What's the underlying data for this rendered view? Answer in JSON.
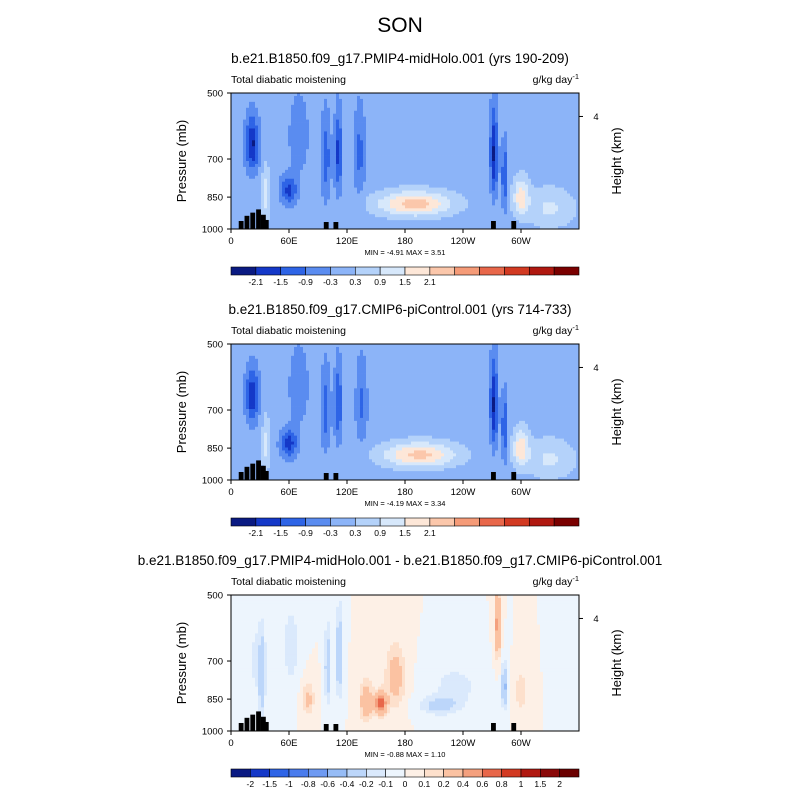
{
  "figure": {
    "season": "SON"
  },
  "chart_data": [
    {
      "type": "heatmap",
      "title": "b.e21.B1850.f09_g17.PMIP4-midHolo.001 (yrs 190-209)",
      "left_label": "Total diabatic moistening",
      "units": "g/kg day",
      "units_exp": "-1",
      "ylabel": "Pressure (mb)",
      "ylabel_right": "Height (km)",
      "yticks": [
        "500",
        "700",
        "850",
        "1000"
      ],
      "yticks_right": [
        "4"
      ],
      "xticks": [
        "0",
        "60E",
        "120E",
        "180",
        "120W",
        "60W"
      ],
      "xlim": [
        0,
        360
      ],
      "ylim": [
        1000,
        500
      ],
      "min_label": "-4.91",
      "max_label": "3.51",
      "colorbar_ticks": [
        "-2.1",
        "-1.5",
        "-0.9",
        "-0.3",
        "0.3",
        "0.9",
        "1.5",
        "2.1"
      ],
      "colorbar_colors": [
        "#0a1a82",
        "#1438c8",
        "#2e64e6",
        "#5a8cf0",
        "#8cb4f8",
        "#b4d2fa",
        "#d7e8fb",
        "#fde7d8",
        "#fbc7ab",
        "#f59b78",
        "#e8674a",
        "#d23a22",
        "#b01810",
        "#7a0000"
      ],
      "features": [
        {
          "lon": 22,
          "p": 650,
          "value": -2.2,
          "slon": 7,
          "sp": 90
        },
        {
          "lon": 36,
          "p": 840,
          "value": 1.2,
          "slon": 4,
          "sp": 120
        },
        {
          "lon": 60,
          "p": 820,
          "value": -1.7,
          "slon": 9,
          "sp": 60
        },
        {
          "lon": 70,
          "p": 620,
          "value": -0.8,
          "slon": 10,
          "sp": 120
        },
        {
          "lon": 98,
          "p": 700,
          "value": -1.3,
          "slon": 5,
          "sp": 150
        },
        {
          "lon": 111,
          "p": 680,
          "value": -1.7,
          "slon": 4,
          "sp": 140
        },
        {
          "lon": 133,
          "p": 680,
          "value": -1.1,
          "slon": 6,
          "sp": 150
        },
        {
          "lon": 190,
          "p": 880,
          "value": 2.4,
          "slon": 38,
          "sp": 55
        },
        {
          "lon": 272,
          "p": 680,
          "value": -2.2,
          "slon": 4,
          "sp": 150
        },
        {
          "lon": 283,
          "p": 770,
          "value": -1.6,
          "slon": 3,
          "sp": 130
        },
        {
          "lon": 300,
          "p": 850,
          "value": 1.8,
          "slon": 8,
          "sp": 80
        },
        {
          "lon": 330,
          "p": 900,
          "value": 1.0,
          "slon": 25,
          "sp": 90
        }
      ],
      "terrain": [
        [
          8,
          960
        ],
        [
          14,
          935
        ],
        [
          20,
          920
        ],
        [
          26,
          905
        ],
        [
          31,
          930
        ],
        [
          34,
          955
        ],
        [
          96,
          965
        ],
        [
          106,
          965
        ],
        [
          269,
          960
        ],
        [
          290,
          960
        ]
      ],
      "terrain_color": "#000000"
    },
    {
      "type": "heatmap",
      "title": "b.e21.B1850.f09_g17.CMIP6-piControl.001 (yrs 714-733)",
      "left_label": "Total diabatic moistening",
      "units": "g/kg day",
      "units_exp": "-1",
      "ylabel": "Pressure (mb)",
      "ylabel_right": "Height (km)",
      "yticks": [
        "500",
        "700",
        "850",
        "1000"
      ],
      "yticks_right": [
        "4"
      ],
      "xticks": [
        "0",
        "60E",
        "120E",
        "180",
        "120W",
        "60W"
      ],
      "xlim": [
        0,
        360
      ],
      "ylim": [
        1000,
        500
      ],
      "min_label": "-4.19",
      "max_label": "3.34",
      "colorbar_ticks": [
        "-2.1",
        "-1.5",
        "-0.9",
        "-0.3",
        "0.3",
        "0.9",
        "1.5",
        "2.1"
      ],
      "colorbar_colors": [
        "#0a1a82",
        "#1438c8",
        "#2e64e6",
        "#5a8cf0",
        "#8cb4f8",
        "#b4d2fa",
        "#d7e8fb",
        "#fde7d8",
        "#fbc7ab",
        "#f59b78",
        "#e8674a",
        "#d23a22",
        "#b01810",
        "#7a0000"
      ],
      "features": [
        {
          "lon": 22,
          "p": 650,
          "value": -2.0,
          "slon": 7,
          "sp": 90
        },
        {
          "lon": 36,
          "p": 840,
          "value": 1.1,
          "slon": 4,
          "sp": 120
        },
        {
          "lon": 60,
          "p": 830,
          "value": -1.8,
          "slon": 9,
          "sp": 60
        },
        {
          "lon": 70,
          "p": 620,
          "value": -0.8,
          "slon": 10,
          "sp": 120
        },
        {
          "lon": 98,
          "p": 700,
          "value": -1.2,
          "slon": 5,
          "sp": 150
        },
        {
          "lon": 111,
          "p": 680,
          "value": -1.5,
          "slon": 4,
          "sp": 140
        },
        {
          "lon": 135,
          "p": 680,
          "value": -1.0,
          "slon": 6,
          "sp": 150
        },
        {
          "lon": 195,
          "p": 880,
          "value": 2.3,
          "slon": 38,
          "sp": 55
        },
        {
          "lon": 272,
          "p": 680,
          "value": -2.2,
          "slon": 4,
          "sp": 150
        },
        {
          "lon": 283,
          "p": 770,
          "value": -1.6,
          "slon": 3,
          "sp": 130
        },
        {
          "lon": 300,
          "p": 850,
          "value": 1.9,
          "slon": 8,
          "sp": 80
        },
        {
          "lon": 330,
          "p": 900,
          "value": 1.0,
          "slon": 25,
          "sp": 90
        }
      ],
      "terrain": [
        [
          8,
          960
        ],
        [
          14,
          935
        ],
        [
          20,
          920
        ],
        [
          26,
          905
        ],
        [
          31,
          930
        ],
        [
          34,
          955
        ],
        [
          96,
          965
        ],
        [
          106,
          965
        ],
        [
          269,
          960
        ],
        [
          290,
          960
        ]
      ],
      "terrain_color": "#000000"
    },
    {
      "type": "heatmap",
      "title": "b.e21.B1850.f09_g17.PMIP4-midHolo.001 - b.e21.B1850.f09_g17.CMIP6-piControl.001",
      "left_label": "Total diabatic moistening",
      "units": "g/kg day",
      "units_exp": "-1",
      "ylabel": "Pressure (mb)",
      "ylabel_right": "Height (km)",
      "yticks": [
        "500",
        "700",
        "850",
        "1000"
      ],
      "yticks_right": [
        "4"
      ],
      "xticks": [
        "0",
        "60E",
        "120E",
        "180",
        "120W",
        "60W"
      ],
      "xlim": [
        0,
        360
      ],
      "ylim": [
        1000,
        500
      ],
      "min_label": "-0.88",
      "max_label": "1.10",
      "colorbar_ticks": [
        "-2",
        "-1.5",
        "-1",
        "-0.8",
        "-0.6",
        "-0.4",
        "-0.2",
        "-0.1",
        "0",
        "0.1",
        "0.2",
        "0.4",
        "0.6",
        "0.8",
        "1",
        "1.5",
        "2"
      ],
      "colorbar_colors": [
        "#0a1a82",
        "#1438c8",
        "#2e64e6",
        "#4a7ced",
        "#6e9af2",
        "#96bcf6",
        "#bcd6fa",
        "#dae9fc",
        "#edf5fd",
        "#fdf0e6",
        "#fde0cc",
        "#fbc2a2",
        "#f4a07e",
        "#e8674a",
        "#d23a22",
        "#b01810",
        "#8a0808",
        "#6a0000"
      ],
      "features": [
        {
          "lon": 28,
          "p": 700,
          "value": -0.15,
          "slon": 10,
          "sp": 150
        },
        {
          "lon": 32,
          "p": 780,
          "value": -0.3,
          "slon": 3,
          "sp": 160
        },
        {
          "lon": 62,
          "p": 650,
          "value": -0.2,
          "slon": 8,
          "sp": 120
        },
        {
          "lon": 80,
          "p": 850,
          "value": 0.25,
          "slon": 6,
          "sp": 70
        },
        {
          "lon": 100,
          "p": 720,
          "value": -0.35,
          "slon": 3,
          "sp": 140
        },
        {
          "lon": 112,
          "p": 680,
          "value": -0.45,
          "slon": 3,
          "sp": 140
        },
        {
          "lon": 140,
          "p": 860,
          "value": 0.35,
          "slon": 7,
          "sp": 90
        },
        {
          "lon": 155,
          "p": 870,
          "value": 0.7,
          "slon": 6,
          "sp": 50
        },
        {
          "lon": 170,
          "p": 760,
          "value": 0.3,
          "slon": 10,
          "sp": 120
        },
        {
          "lon": 215,
          "p": 880,
          "value": -0.25,
          "slon": 20,
          "sp": 40
        },
        {
          "lon": 232,
          "p": 800,
          "value": -0.15,
          "slon": 25,
          "sp": 90
        },
        {
          "lon": 276,
          "p": 580,
          "value": 0.5,
          "slon": 3,
          "sp": 100
        },
        {
          "lon": 283,
          "p": 800,
          "value": -0.45,
          "slon": 3,
          "sp": 90
        },
        {
          "lon": 300,
          "p": 820,
          "value": 0.2,
          "slon": 6,
          "sp": 80
        }
      ],
      "terrain": [
        [
          8,
          960
        ],
        [
          14,
          935
        ],
        [
          20,
          920
        ],
        [
          26,
          905
        ],
        [
          31,
          930
        ],
        [
          34,
          955
        ],
        [
          96,
          965
        ],
        [
          106,
          965
        ],
        [
          269,
          960
        ],
        [
          290,
          960
        ]
      ],
      "terrain_color": "#000000"
    }
  ]
}
